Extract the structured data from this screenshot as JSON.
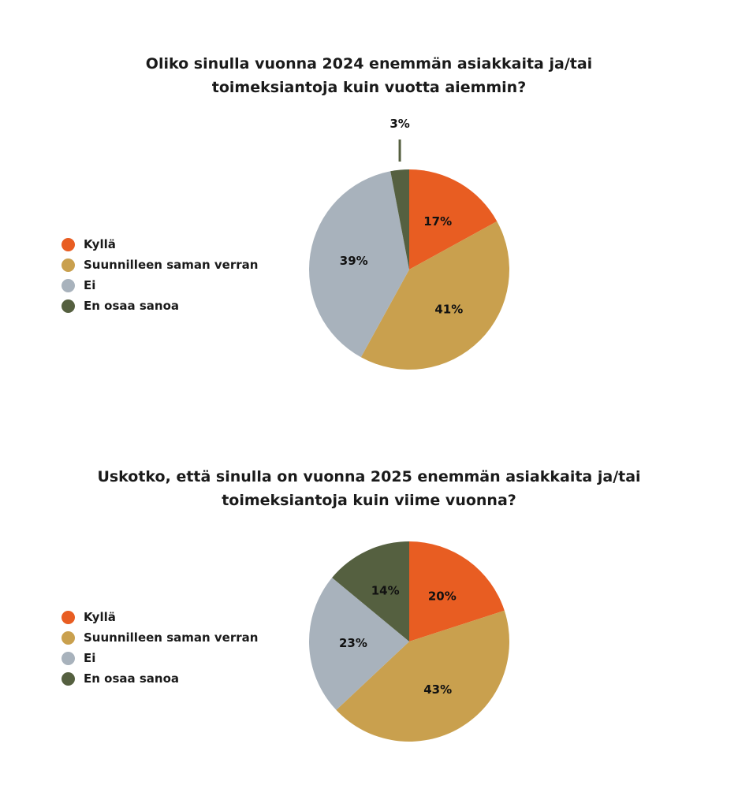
{
  "chart_data": [
    {
      "type": "pie",
      "title_lines": [
        "Oliko sinulla vuonna 2024 enemmän asiakkaita ja/tai",
        "toimeksiantoja kuin vuotta aiemmin?"
      ],
      "categories": [
        "Kyllä",
        "Suunnilleen saman verran",
        "Ei",
        "En osaa sanoa"
      ],
      "values": [
        17,
        41,
        39,
        3
      ],
      "labels": [
        "17%",
        "41%",
        "39%",
        "3%"
      ],
      "colors": [
        "#e85d22",
        "#c9a04e",
        "#a8b2bc",
        "#556040"
      ],
      "legend_position": "left"
    },
    {
      "type": "pie",
      "title_lines": [
        "Uskotko, että sinulla on vuonna 2025 enemmän asiakkaita ja/tai",
        "toimeksiantoja kuin viime vuonna?"
      ],
      "categories": [
        "Kyllä",
        "Suunnilleen saman verran",
        "Ei",
        "En osaa sanoa"
      ],
      "values": [
        20,
        43,
        23,
        14
      ],
      "labels": [
        "20%",
        "43%",
        "23%",
        "14%"
      ],
      "colors": [
        "#e85d22",
        "#c9a04e",
        "#a8b2bc",
        "#556040"
      ],
      "legend_position": "left"
    }
  ]
}
